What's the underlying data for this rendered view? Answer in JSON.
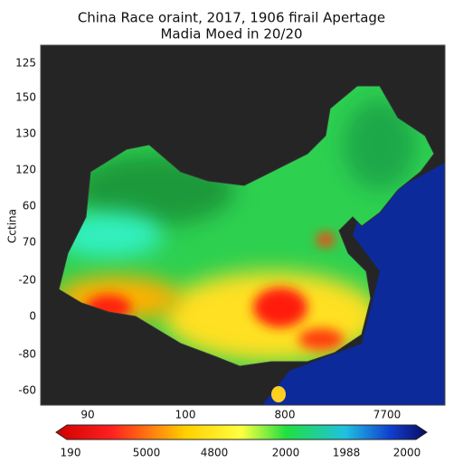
{
  "title": [
    "China Race oraint, 2017, 1906 firail Apertage",
    "Madia Moed in 20/20"
  ],
  "y_axis_label": "Cctina",
  "y_labels": [
    "125",
    "150",
    "130",
    "120",
    "60",
    "70",
    "-20",
    "0",
    "-80",
    "-60"
  ],
  "x_labels": [
    "90",
    "100",
    "800",
    "7700"
  ],
  "colorbar_labels": [
    "190",
    "5000",
    "4800",
    "2000",
    "1988",
    "2000"
  ]
}
